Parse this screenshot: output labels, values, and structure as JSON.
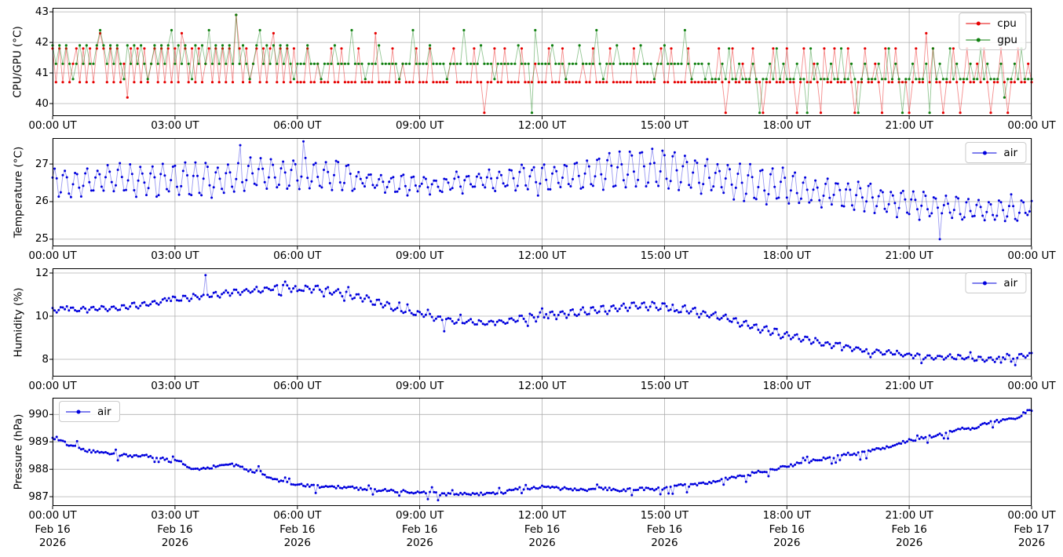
{
  "figure": {
    "background": "#ffffff"
  },
  "colors": {
    "cpu": "#e60000",
    "gpu": "#108010",
    "air": "#0000dd",
    "grid": "#b0b0b0",
    "spine": "#000000",
    "text": "#000000"
  },
  "x_axis": {
    "range_minutes": [
      0,
      1440
    ],
    "tick_minutes": [
      0,
      180,
      360,
      540,
      720,
      900,
      1080,
      1260,
      1440
    ],
    "tick_labels": [
      "00:00 UT",
      "03:00 UT",
      "06:00 UT",
      "09:00 UT",
      "12:00 UT",
      "15:00 UT",
      "18:00 UT",
      "21:00 UT",
      "00:00 UT"
    ],
    "date_line1": [
      "Feb 16",
      "Feb 16",
      "Feb 16",
      "Feb 16",
      "Feb 16",
      "Feb 16",
      "Feb 16",
      "Feb 16",
      "Feb 17"
    ],
    "date_line2": [
      "2026",
      "2026",
      "2026",
      "2026",
      "2026",
      "2026",
      "2026",
      "2026",
      "2026"
    ]
  },
  "chart_data": [
    {
      "type": "line",
      "name": "cpu-gpu-temperature",
      "ylabel": "CPU/GPU (°C)",
      "yticks": [
        40,
        41,
        42,
        43
      ],
      "ylim": [
        39.59,
        43.13
      ],
      "grid": true,
      "legend": {
        "position": "upper-right",
        "entries": [
          "cpu",
          "gpu"
        ],
        "top_offset": 6
      },
      "series": [
        {
          "name": "cpu",
          "color": "#e60000",
          "encoding": "levels",
          "line_opacity": 0.45,
          "marker_radius": 1.6,
          "levels": [
            39.7,
            40.2,
            40.7,
            41.3,
            41.8,
            42.3,
            42.9
          ],
          "sequence": "4242423424242454242423142424234242424254242423424242426424234242452424242224223222422422224222252222422322242224222223422222422022422422224222322242224222223224222242222224222222342242222422222222420242232242202242224220242232042242224202242232042242220242252422022420242232420224202242232"
        },
        {
          "name": "gpu",
          "color": "#108010",
          "encoding": "levels",
          "line_opacity": 0.45,
          "marker_radius": 1.6,
          "levels": [
            39.7,
            40.2,
            40.8,
            41.3,
            41.8,
            41.9,
            42.4,
            42.9
          ],
          "sequence": "5353532353533565353532535353235353563535325353635353537353235635353535323335333233353333633323335333332333633335333323333633335333233333353330633335333233353333632333533333353332335333336323332322232422322232022324232223220423222322422320232223224232022322230423224232223224232223122324222"
        }
      ]
    },
    {
      "type": "line",
      "name": "air-temperature",
      "ylabel": "Temperature (°C)",
      "yticks": [
        25,
        26,
        27
      ],
      "ylim": [
        24.81,
        27.69
      ],
      "grid": true,
      "legend": {
        "position": "upper-right",
        "entries": [
          "air"
        ],
        "top_offset": 5
      },
      "series": [
        {
          "name": "air",
          "color": "#0000dd",
          "encoding": "trend",
          "line_opacity": 0.4,
          "marker_radius": 1.5,
          "sample_step_min": 3,
          "trend": [
            26.5,
            26.5,
            26.55,
            26.6,
            26.5,
            26.55,
            26.6,
            26.55,
            26.6,
            26.7,
            26.75,
            26.7,
            26.8,
            26.7,
            26.65,
            26.6,
            26.5,
            26.45,
            26.5,
            26.45,
            26.5,
            26.55,
            26.6,
            26.65,
            26.6,
            26.65,
            26.7,
            26.8,
            26.85,
            26.9,
            26.85,
            26.8,
            26.7,
            26.6,
            26.5,
            26.45,
            26.4,
            26.3,
            26.25,
            26.2,
            26.1,
            26.0,
            25.95,
            25.9,
            25.85,
            25.8,
            25.75,
            25.8,
            25.85
          ],
          "amp_trend": [
            0.35,
            0.35,
            0.35,
            0.35,
            0.4,
            0.4,
            0.4,
            0.4,
            0.4,
            0.4,
            0.4,
            0.4,
            0.4,
            0.4,
            0.4,
            0.22,
            0.22,
            0.22,
            0.22,
            0.22,
            0.22,
            0.22,
            0.22,
            0.35,
            0.35,
            0.35,
            0.35,
            0.5,
            0.5,
            0.5,
            0.5,
            0.5,
            0.45,
            0.45,
            0.45,
            0.45,
            0.45,
            0.35,
            0.35,
            0.35,
            0.35,
            0.35,
            0.35,
            0.3,
            0.3,
            0.3,
            0.3,
            0.3,
            0.3
          ],
          "oscillation": {
            "amplitude": 0.33,
            "period_min": 16,
            "phase": 0.7
          },
          "jitter": 0.1,
          "outliers": [
            {
              "t": 275,
              "v": 27.5
            },
            {
              "t": 370,
              "v": 27.6
            },
            {
              "t": 1305,
              "v": 25.0
            }
          ]
        }
      ]
    },
    {
      "type": "line",
      "name": "air-humidity",
      "ylabel": "Humidity (%)",
      "yticks": [
        8,
        10,
        12
      ],
      "ylim": [
        7.2,
        12.22
      ],
      "grid": true,
      "legend": {
        "position": "upper-right",
        "entries": [
          "air"
        ],
        "top_offset": 5
      },
      "series": [
        {
          "name": "air",
          "color": "#0000dd",
          "encoding": "trend",
          "line_opacity": 0.4,
          "marker_radius": 1.5,
          "sample_step_min": 3,
          "trend": [
            10.3,
            10.3,
            10.35,
            10.35,
            10.5,
            10.6,
            10.8,
            10.9,
            11.0,
            11.1,
            11.2,
            11.3,
            11.3,
            11.25,
            11.1,
            10.9,
            10.6,
            10.3,
            10.1,
            9.9,
            9.75,
            9.7,
            9.75,
            9.9,
            10.0,
            10.1,
            10.2,
            10.3,
            10.4,
            10.5,
            10.45,
            10.3,
            10.1,
            9.9,
            9.6,
            9.35,
            9.1,
            8.9,
            8.7,
            8.55,
            8.4,
            8.3,
            8.2,
            8.1,
            8.1,
            8.05,
            8.0,
            8.1,
            8.2
          ],
          "amp_trend": [
            0.12,
            0.12,
            0.12,
            0.12,
            0.12,
            0.12,
            0.12,
            0.12,
            0.12,
            0.12,
            0.12,
            0.12,
            0.15,
            0.15,
            0.15,
            0.15,
            0.15,
            0.1,
            0.1,
            0.1,
            0.1,
            0.1,
            0.1,
            0.18,
            0.18,
            0.18,
            0.18,
            0.18,
            0.18,
            0.18,
            0.18,
            0.18,
            0.15,
            0.15,
            0.15,
            0.15,
            0.15,
            0.15,
            0.15,
            0.1,
            0.1,
            0.1,
            0.1,
            0.1,
            0.1,
            0.1,
            0.1,
            0.1,
            0.1
          ],
          "oscillation": {
            "amplitude": 0.15,
            "period_min": 15,
            "phase": 2.1
          },
          "jitter": 0.055,
          "spikes": {
            "prob_up": 0.02,
            "amp_up": 0.22,
            "prob_down": 0.015,
            "amp_down": -0.25
          },
          "outliers": [
            {
              "t": 225,
              "v": 11.9
            },
            {
              "t": 575,
              "v": 9.3
            },
            {
              "t": 1395,
              "v": 7.85
            }
          ]
        }
      ]
    },
    {
      "type": "line",
      "name": "air-pressure",
      "ylabel": "Pressure (hPa)",
      "yticks": [
        987,
        988,
        989,
        990
      ],
      "ylim": [
        986.66,
        990.61
      ],
      "grid": true,
      "legend": {
        "position": "upper-left",
        "entries": [
          "air"
        ],
        "top_offset": 4
      },
      "series": [
        {
          "name": "air",
          "color": "#0000dd",
          "encoding": "trend",
          "line_opacity": 0.4,
          "marker_radius": 1.5,
          "sample_step_min": 3,
          "trend": [
            989.15,
            988.85,
            988.65,
            988.55,
            988.5,
            988.45,
            988.3,
            988.0,
            988.1,
            988.15,
            987.9,
            987.6,
            987.42,
            987.38,
            987.35,
            987.3,
            987.25,
            987.2,
            987.15,
            987.1,
            987.1,
            987.1,
            987.15,
            987.3,
            987.35,
            987.3,
            987.25,
            987.3,
            987.25,
            987.3,
            987.3,
            987.4,
            987.5,
            987.65,
            987.8,
            987.95,
            988.1,
            988.3,
            988.4,
            988.55,
            988.65,
            988.8,
            989.05,
            989.2,
            989.35,
            989.5,
            989.7,
            989.85,
            990.15
          ],
          "oscillation": {
            "amplitude": 0.015,
            "period_min": 60,
            "phase": 0.0
          },
          "jitter": 0.055,
          "spikes": {
            "prob_up": 0.025,
            "amp_up": 0.16,
            "prob_down": 0.06,
            "amp_down": -0.2
          },
          "outliers": []
        }
      ]
    }
  ]
}
